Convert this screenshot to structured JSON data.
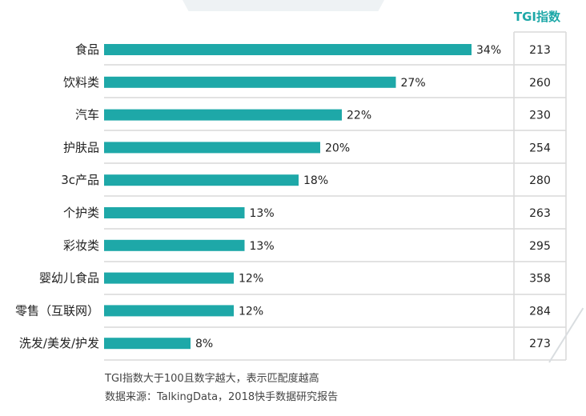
{
  "chart_data": {
    "type": "bar",
    "orientation": "horizontal",
    "categories": [
      "食品",
      "饮料类",
      "汽车",
      "护肤品",
      "3c产品",
      "个护类",
      "彩妆类",
      "婴幼儿食品",
      "零售（互联网）",
      "洗发/美发/护发"
    ],
    "values": [
      34,
      27,
      22,
      20,
      18,
      13,
      13,
      12,
      12,
      8
    ],
    "value_labels": [
      "34%",
      "27%",
      "22%",
      "20%",
      "18%",
      "13%",
      "13%",
      "12%",
      "12%",
      "8%"
    ],
    "bar_color": "#1ea8a8",
    "tgi_header": "TGI指数",
    "tgi_values": [
      "213",
      "260",
      "230",
      "254",
      "280",
      "263",
      "295",
      "358",
      "284",
      "273"
    ],
    "tgi_header_color": "#1ea8a8"
  },
  "notes": {
    "line1": "TGI指数大于100且数字越大，表示匹配度越高",
    "line2": "数据来源：TalkingData，2018快手数据研究报告"
  }
}
